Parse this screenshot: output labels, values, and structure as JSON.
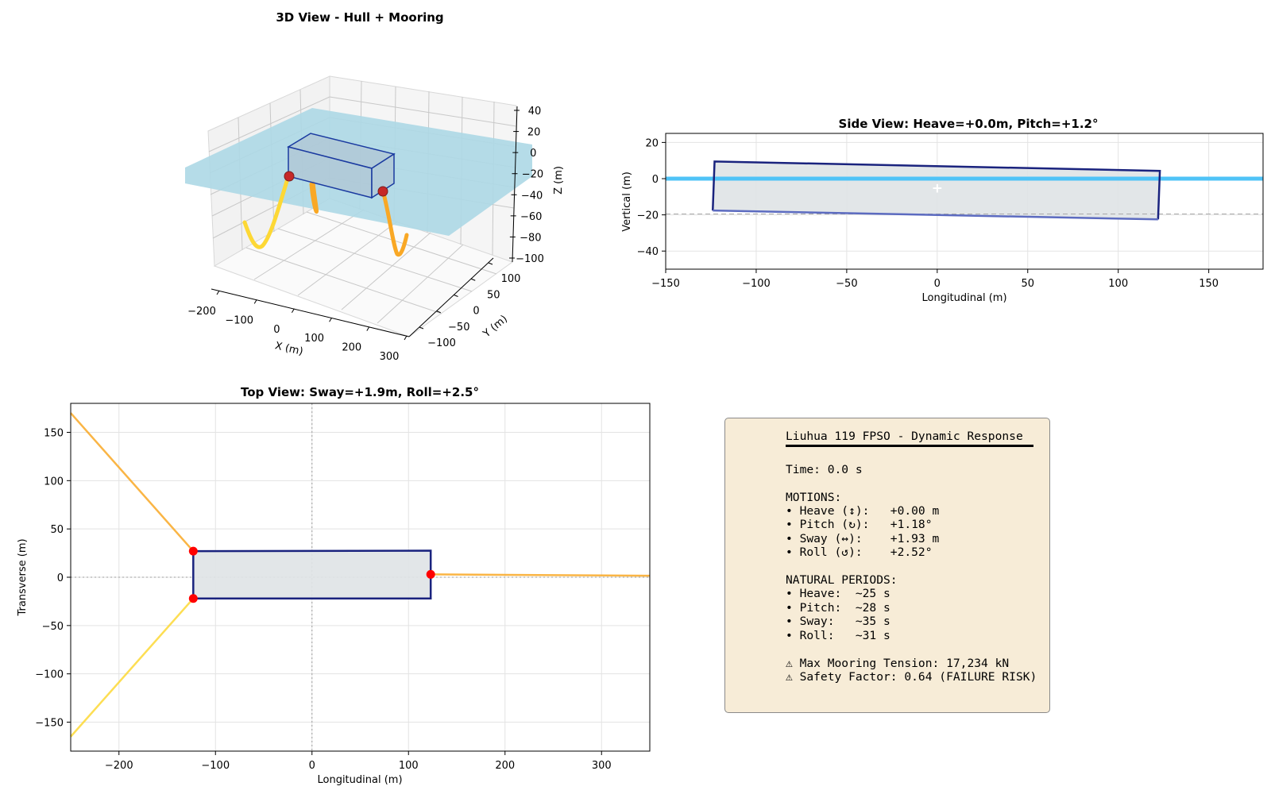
{
  "colors": {
    "water": "#add8e6",
    "hull_edge": "#1a237e",
    "hull_fill": "#dfe3e6",
    "waterline": "#4fc3f7",
    "fairlead": "#ff0000",
    "line_yellow": "#fdd835",
    "line_orange": "#f9a825",
    "panel_bg": "#f7ecd7"
  },
  "panel_3d": {
    "title": "3D View - Hull + Mooring",
    "xlabel": "X (m)",
    "ylabel": "Y (m)",
    "zlabel": "Z (m)",
    "x_ticks": [
      "−200",
      "−100",
      "0",
      "100",
      "200",
      "300"
    ],
    "y_ticks": [
      "−100",
      "−50",
      "0",
      "50",
      "100"
    ],
    "z_ticks": [
      "40",
      "20",
      "0",
      "−20",
      "−40",
      "−60",
      "−80",
      "−100"
    ]
  },
  "side_view": {
    "title": "Side View: Heave=+0.0m, Pitch=+1.2°",
    "xlabel": "Longitudinal (m)",
    "ylabel": "Vertical (m)",
    "x_ticks": [
      "−150",
      "−100",
      "−50",
      "0",
      "50",
      "100",
      "150"
    ],
    "y_ticks": [
      "20",
      "0",
      "−20",
      "−40"
    ],
    "cg_marker": "+"
  },
  "top_view": {
    "title": "Top View: Sway=+1.9m, Roll=+2.5°",
    "xlabel": "Longitudinal (m)",
    "ylabel": "Transverse (m)",
    "x_ticks": [
      "−200",
      "−100",
      "0",
      "100",
      "200",
      "300"
    ],
    "y_ticks": [
      "150",
      "100",
      "50",
      "0",
      "−50",
      "−100",
      "−150"
    ]
  },
  "chart_data": [
    {
      "type": "line",
      "panel": "side_view",
      "title": "Side View: Heave=+0.0m, Pitch=+1.2°",
      "xlabel": "Longitudinal (m)",
      "ylabel": "Vertical (m)",
      "xlim": [
        -150,
        180
      ],
      "ylim": [
        -50,
        25
      ],
      "hull_outline": [
        [
          -123,
          9.5
        ],
        [
          123,
          4.3
        ],
        [
          122,
          -22.5
        ],
        [
          -124,
          -17.6
        ]
      ],
      "waterline_z": 0,
      "keel_reference_z": -19.5,
      "cg": [
        0,
        -5
      ]
    },
    {
      "type": "line",
      "panel": "top_view",
      "title": "Top View: Sway=+1.9m, Roll=+2.5°",
      "xlabel": "Longitudinal (m)",
      "ylabel": "Transverse (m)",
      "xlim": [
        -250,
        350
      ],
      "ylim": [
        -180,
        180
      ],
      "hull_outline": [
        [
          -123,
          27
        ],
        [
          123,
          27.5
        ],
        [
          123,
          -22
        ],
        [
          -123,
          -22
        ]
      ],
      "fairleads": [
        [
          -123,
          27
        ],
        [
          -123,
          -22
        ],
        [
          123,
          3
        ]
      ],
      "mooring_lines": [
        {
          "from": [
            -123,
            27
          ],
          "to": [
            -250,
            170
          ],
          "color": "orange"
        },
        {
          "from": [
            -123,
            -22
          ],
          "to": [
            -250,
            -165
          ],
          "color": "yellow"
        },
        {
          "from": [
            123,
            3
          ],
          "to": [
            350,
            1.5
          ],
          "color": "orange"
        }
      ]
    }
  ],
  "info_panel": {
    "title": "Liuhua 119 FPSO - Dynamic Response",
    "time": "Time: 0.0 s",
    "motions_header": "MOTIONS:",
    "motions": [
      "• Heave (↕):   +0.00 m",
      "• Pitch (↻):   +1.18°",
      "• Sway (↔):    +1.93 m",
      "• Roll (↺):    +2.52°"
    ],
    "periods_header": "NATURAL PERIODS:",
    "periods": [
      "• Heave:  ~25 s",
      "• Pitch:  ~28 s",
      "• Sway:   ~35 s",
      "• Roll:   ~31 s"
    ],
    "warning_tension": "⚠ Max Mooring Tension: 17,234 kN",
    "warning_safety": "⚠ Safety Factor: 0.64 (FAILURE RISK)"
  }
}
